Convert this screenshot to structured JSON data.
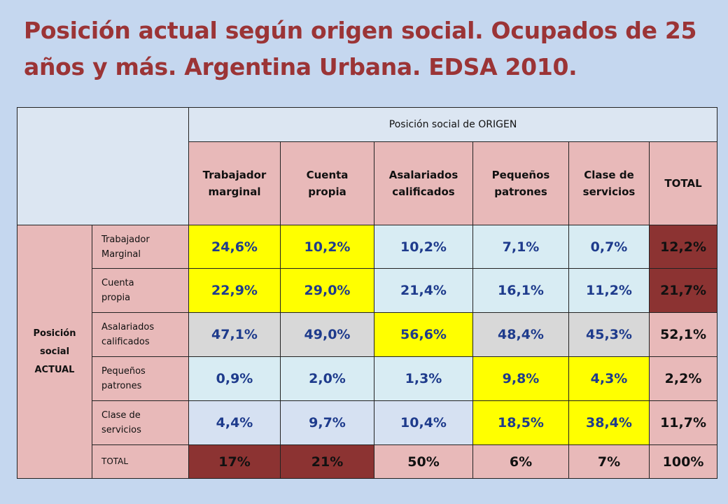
{
  "title": "Posición actual según origen social. Ocupados de 25 años y más. Argentina Urbana. EDSA 2010.",
  "table": {
    "origin_header": "Posición social de ORIGEN",
    "row_group_label_lines": [
      "Posición",
      "social",
      "ACTUAL"
    ],
    "columns": [
      {
        "lines": [
          "Trabajador",
          "marginal"
        ]
      },
      {
        "lines": [
          "Cuenta",
          "propia"
        ]
      },
      {
        "lines": [
          "Asalariados",
          "calificados"
        ]
      },
      {
        "lines": [
          "Pequeños",
          "patrones"
        ]
      },
      {
        "lines": [
          "Clase de",
          "servicios"
        ]
      },
      {
        "lines": [
          "TOTAL"
        ]
      }
    ],
    "rows": [
      {
        "lines": [
          "Trabajador",
          "Marginal"
        ],
        "values": [
          "24,6%",
          "10,2%",
          "10,2%",
          "7,1%",
          "0,7%",
          "12,2%"
        ]
      },
      {
        "lines": [
          "Cuenta",
          "propia"
        ],
        "values": [
          "22,9%",
          "29,0%",
          "21,4%",
          "16,1%",
          "11,2%",
          "21,7%"
        ]
      },
      {
        "lines": [
          "Asalariados",
          "calificados"
        ],
        "values": [
          "47,1%",
          "49,0%",
          "56,6%",
          "48,4%",
          "45,3%",
          "52,1%"
        ]
      },
      {
        "lines": [
          "Pequeños",
          "patrones"
        ],
        "values": [
          "0,9%",
          "2,0%",
          "1,3%",
          "9,8%",
          "4,3%",
          "2,2%"
        ]
      },
      {
        "lines": [
          "Clase de",
          "servicios"
        ],
        "values": [
          "4,4%",
          "9,7%",
          "10,4%",
          "18,5%",
          "38,4%",
          "11,7%"
        ]
      },
      {
        "lines": [
          "TOTAL"
        ],
        "values": [
          "17%",
          "21%",
          "50%",
          "6%",
          "7%",
          "100%"
        ]
      }
    ]
  },
  "colors": {
    "background": "#c5d7ef",
    "title": "#9b3436",
    "highlight_yellow": "#ffff00",
    "dark_red": "#8c3332",
    "pink": "#e8b9b9",
    "value_blue": "#1e3b8c"
  }
}
